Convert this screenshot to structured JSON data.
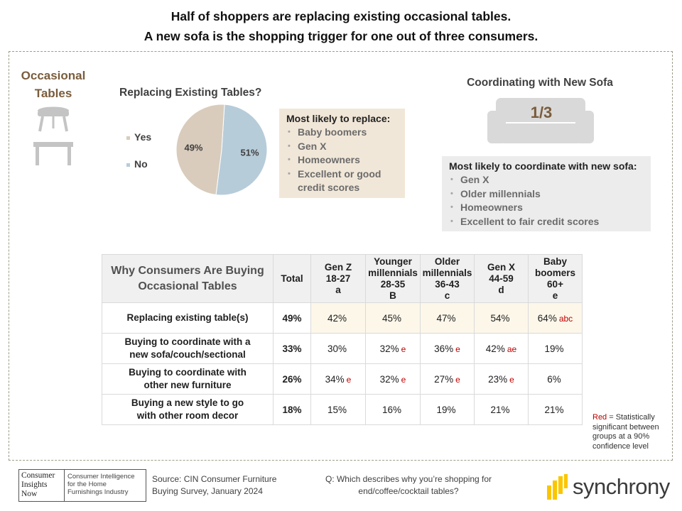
{
  "headline": {
    "line1": "Half of shoppers are replacing existing occasional tables.",
    "line2": "A new sofa is the shopping trigger for one out of three consumers."
  },
  "section": {
    "title_line1": "Occasional",
    "title_line2": "Tables"
  },
  "pie": {
    "title": "Replacing Existing Tables?",
    "legend": [
      {
        "label": "Yes",
        "color": "#d9ccbc"
      },
      {
        "label": "No",
        "color": "#b7ccd9"
      }
    ],
    "yes_label": "49%",
    "no_label": "51%"
  },
  "replace_box": {
    "title": "Most likely to replace:",
    "items": [
      "Baby boomers",
      "Gen X",
      "Homeowners",
      "Excellent or good",
      "credit scores"
    ]
  },
  "coordinate": {
    "title": "Coordinating with New Sofa",
    "fraction": "1/3",
    "box_title": "Most likely to coordinate with new sofa:",
    "items": [
      "Gen X",
      "Older millennials",
      "Homeowners",
      "Excellent to fair credit scores"
    ]
  },
  "table": {
    "title_line1": "Why Consumers Are Buying",
    "title_line2": "Occasional Tables",
    "total_label": "Total",
    "columns": [
      {
        "l1": "",
        "l2": "Gen Z",
        "l3": "18-27",
        "l4": "a"
      },
      {
        "l1": "Younger",
        "l2": "millennials",
        "l3": "28-35",
        "l4": "B"
      },
      {
        "l1": "Older",
        "l2": "millennials",
        "l3": "36-43",
        "l4": "c"
      },
      {
        "l1": "",
        "l2": "Gen X",
        "l3": "44-59",
        "l4": "d"
      },
      {
        "l1": "Baby",
        "l2": "boomers",
        "l3": "60+",
        "l4": "e"
      }
    ],
    "rows": [
      {
        "l1": "Replacing existing table(s)",
        "l2": "",
        "total": "49%",
        "vals": [
          "42%",
          "45%",
          "47%",
          "54%",
          "64%"
        ],
        "sig": [
          "",
          "",
          "",
          "",
          "abc"
        ]
      },
      {
        "l1": "Buying to coordinate with a",
        "l2": "new sofa/couch/sectional",
        "total": "33%",
        "vals": [
          "30%",
          "32%",
          "36%",
          "42%",
          "19%"
        ],
        "sig": [
          "",
          "e",
          "e",
          "ae",
          ""
        ]
      },
      {
        "l1": "Buying to coordinate with",
        "l2": "other new furniture",
        "total": "26%",
        "vals": [
          "34%",
          "32%",
          "27%",
          "23%",
          "6%"
        ],
        "sig": [
          "e",
          "e",
          "e",
          "e",
          ""
        ]
      },
      {
        "l1": "Buying a new style to go",
        "l2": "with other room decor",
        "total": "18%",
        "vals": [
          "15%",
          "16%",
          "19%",
          "21%",
          "21%"
        ],
        "sig": [
          "",
          "",
          "",
          "",
          ""
        ]
      }
    ]
  },
  "note": {
    "red_word": "Red",
    "rest_l1": " = Statistically",
    "l2": "significant between",
    "l3": "groups at a 90%",
    "l4": "confidence level"
  },
  "footer": {
    "logo_left": [
      "Consumer",
      "Insights",
      "Now"
    ],
    "logo_right": [
      "Consumer Intelligence",
      "for the Home",
      "Furnishings Industry"
    ],
    "source_l1": "Source:  CIN Consumer Furniture",
    "source_l2": "Buying Survey, January 2024",
    "question_l1": "Q: Which describes why you’re shopping for",
    "question_l2": "end/coffee/cocktail tables?",
    "brand": "synchrony",
    "brand_color": "#fbc600"
  },
  "chart_data": [
    {
      "type": "pie",
      "title": "Replacing Existing Tables?",
      "categories": [
        "Yes",
        "No"
      ],
      "values": [
        49,
        51
      ],
      "colors": [
        "#d9ccbc",
        "#b7ccd9"
      ],
      "legend": "left"
    },
    {
      "type": "table",
      "title": "Why Consumers Are Buying Occasional Tables",
      "columns": [
        "Total",
        "Gen Z 18-27",
        "Younger millennials 28-35",
        "Older millennials 36-43",
        "Gen X 44-59",
        "Baby boomers 60+"
      ],
      "rows": [
        {
          "name": "Replacing existing table(s)",
          "values": [
            49,
            42,
            45,
            47,
            54,
            64
          ]
        },
        {
          "name": "Buying to coordinate with a new sofa/couch/sectional",
          "values": [
            33,
            30,
            32,
            36,
            42,
            19
          ]
        },
        {
          "name": "Buying to coordinate with other new furniture",
          "values": [
            26,
            34,
            32,
            27,
            23,
            6
          ]
        },
        {
          "name": "Buying a new style to go with other room decor",
          "values": [
            18,
            15,
            16,
            19,
            21,
            21
          ]
        }
      ]
    }
  ]
}
